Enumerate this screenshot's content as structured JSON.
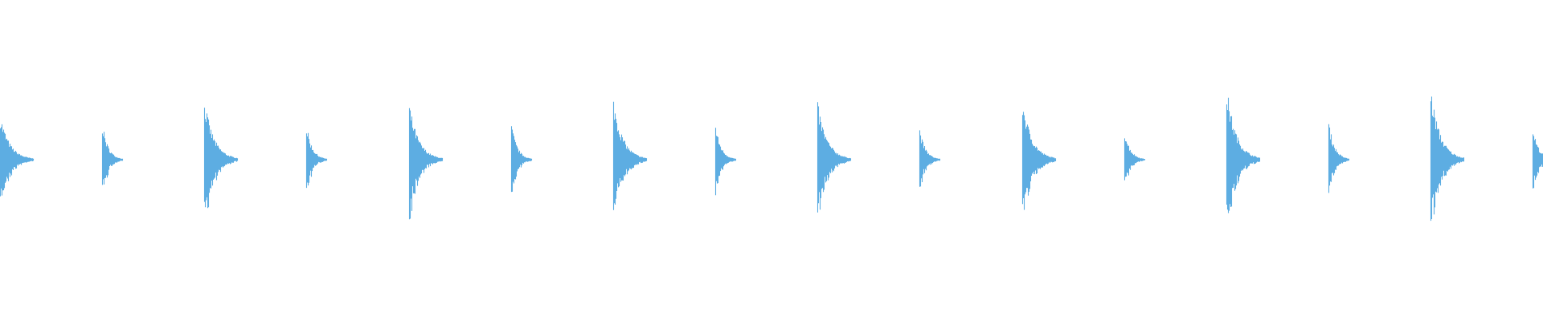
{
  "chart_data": {
    "type": "area",
    "title": "",
    "xlabel": "",
    "ylabel": "",
    "ylim": [
      -1,
      1
    ],
    "grid": false,
    "color": "#5dade2",
    "beats_total": 15.1,
    "pulses": [
      {
        "beat": 0,
        "peak": 0.26,
        "decay_beats": 0.25
      },
      {
        "beat": 1,
        "peak": 0.21,
        "decay_beats": 0.2
      },
      {
        "beat": 2,
        "peak": 0.35,
        "decay_beats": 0.25
      },
      {
        "beat": 3,
        "peak": 0.2,
        "decay_beats": 0.2
      },
      {
        "beat": 4,
        "peak": 0.32,
        "decay_beats": 0.25
      },
      {
        "beat": 5,
        "peak": 0.21,
        "decay_beats": 0.2
      },
      {
        "beat": 6,
        "peak": 0.35,
        "decay_beats": 0.25
      },
      {
        "beat": 7,
        "peak": 0.2,
        "decay_beats": 0.2
      },
      {
        "beat": 8,
        "peak": 0.33,
        "decay_beats": 0.25
      },
      {
        "beat": 9,
        "peak": 0.18,
        "decay_beats": 0.2
      },
      {
        "beat": 10,
        "peak": 0.35,
        "decay_beats": 0.25
      },
      {
        "beat": 11,
        "peak": 0.17,
        "decay_beats": 0.2
      },
      {
        "beat": 12,
        "peak": 0.42,
        "decay_beats": 0.25
      },
      {
        "beat": 13,
        "peak": 0.22,
        "decay_beats": 0.2
      },
      {
        "beat": 14,
        "peak": 0.41,
        "decay_beats": 0.25
      },
      {
        "beat": 15,
        "peak": 0.19,
        "decay_beats": 0.2
      }
    ]
  }
}
